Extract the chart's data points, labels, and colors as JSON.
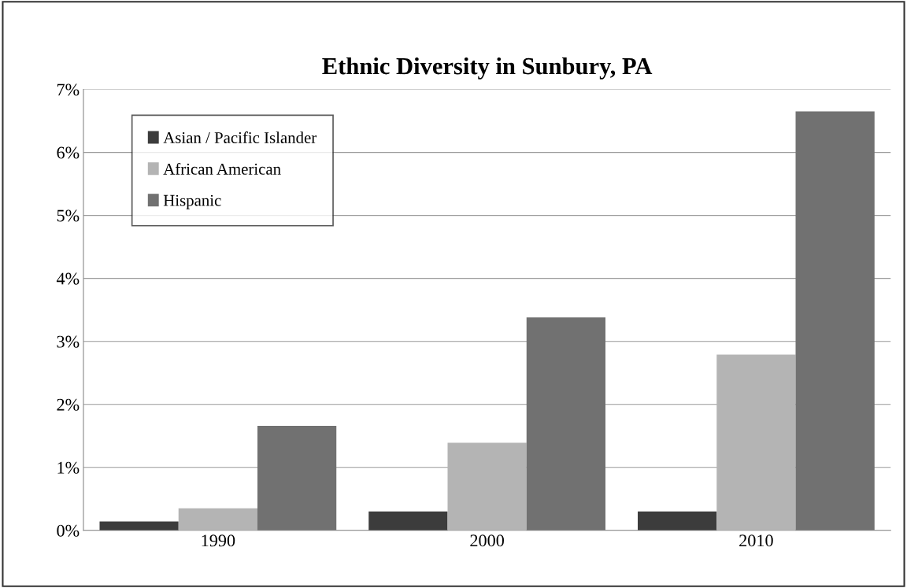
{
  "chart_data": {
    "type": "bar",
    "title": "Ethnic Diversity in Sunbury, PA",
    "categories": [
      "1990",
      "2000",
      "2010"
    ],
    "series": [
      {
        "name": "Asian / Pacific Islander",
        "color": "#3c3c3c",
        "values": [
          0.14,
          0.3,
          0.3
        ]
      },
      {
        "name": "African American",
        "color": "#b4b4b4",
        "values": [
          0.35,
          1.39,
          2.79
        ]
      },
      {
        "name": "Hispanic",
        "color": "#717171",
        "values": [
          1.66,
          3.38,
          6.65
        ]
      }
    ],
    "ylim": [
      0,
      7
    ],
    "yticks": [
      {
        "value": 0,
        "label": "0%"
      },
      {
        "value": 1,
        "label": "1%"
      },
      {
        "value": 2,
        "label": "2%"
      },
      {
        "value": 3,
        "label": "3%"
      },
      {
        "value": 4,
        "label": "4%"
      },
      {
        "value": 5,
        "label": "5%"
      },
      {
        "value": 6,
        "label": "6%"
      },
      {
        "value": 7,
        "label": "7%"
      }
    ],
    "grid": "y",
    "legend": "top left"
  }
}
